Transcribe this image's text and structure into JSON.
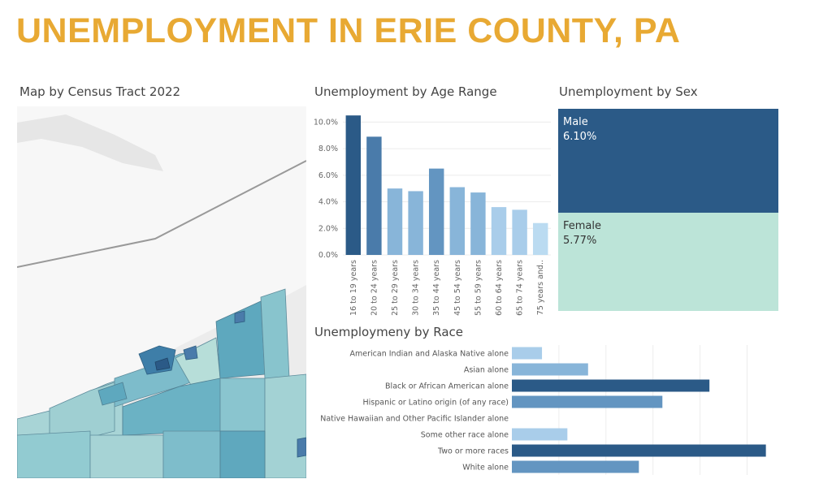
{
  "title": "UNEMPLOYMENT IN ERIE COUNTY, PA",
  "map": {
    "title": "Map by Census Tract 2022"
  },
  "colors": {
    "title": "#E8A933",
    "dark": "#2B5A87",
    "mid": "#4A7BAA",
    "mid2": "#6395C1",
    "light": "#88B5D9",
    "lighter": "#A9CDEA",
    "female": "#BCE4D8"
  },
  "chart_data": [
    {
      "type": "bar",
      "title": "Unemployment by Age Range",
      "categories": [
        "16 to 19 years",
        "20 to 24 years",
        "25 to 29 years",
        "30 to 34 years",
        "35 to 44 years",
        "45 to 54 years",
        "55 to 59 years",
        "60 to 64 years",
        "65 to 74 years",
        "75 years and.."
      ],
      "values": [
        10.5,
        8.9,
        5.0,
        4.8,
        6.5,
        5.1,
        4.7,
        3.6,
        3.4,
        2.4
      ],
      "ylim": [
        0,
        11
      ],
      "yticks": [
        "0.0%",
        "2.0%",
        "4.0%",
        "6.0%",
        "8.0%",
        "10.0%"
      ],
      "grid": true
    },
    {
      "type": "table",
      "title": "Unemployment by Sex",
      "categories": [
        "Male",
        "Female"
      ],
      "values": [
        6.1,
        5.77
      ],
      "labels": [
        "6.10%",
        "5.77%"
      ]
    },
    {
      "type": "bar",
      "orientation": "horizontal",
      "title": "Unemploymeny by Race",
      "categories": [
        "American Indian and Alaska Native alone",
        "Asian alone",
        "Black or African American alone",
        "Hispanic or Latino origin (of any race)",
        "Native Hawaiian and Other Pacific Islander alone",
        "Some other race alone",
        "Two or more races",
        "White alone"
      ],
      "values": [
        3.2,
        8.1,
        21.0,
        16.0,
        0,
        5.9,
        27.0,
        13.5
      ],
      "xlim": [
        0,
        28.5
      ],
      "grid": true
    }
  ]
}
